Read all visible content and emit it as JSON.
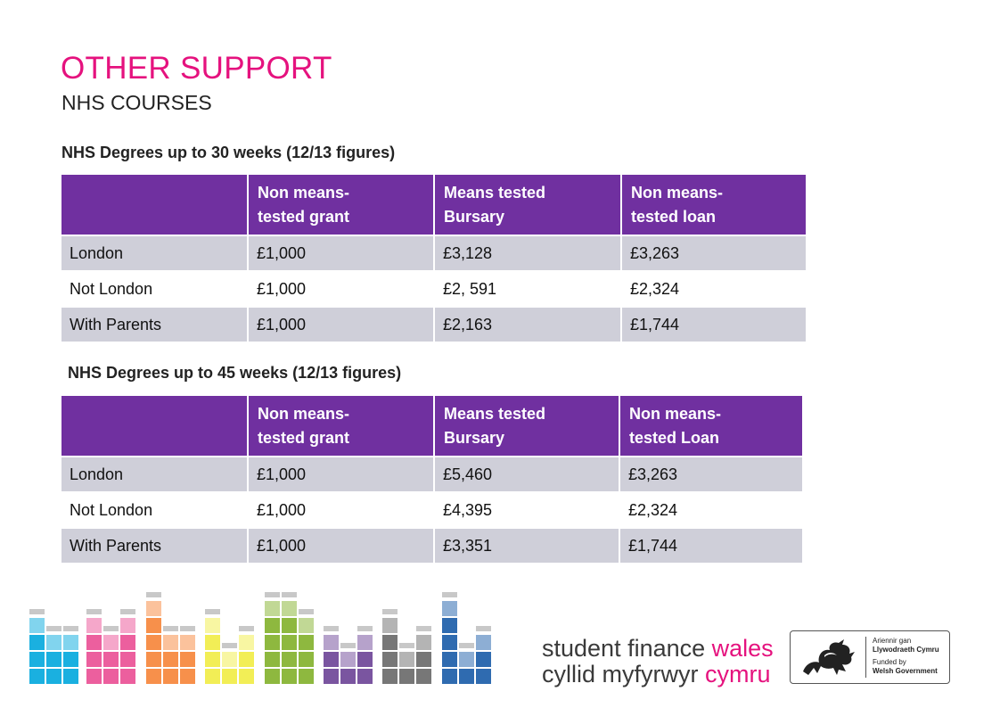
{
  "header": {
    "title": "OTHER SUPPORT",
    "subtitle": "NHS COURSES"
  },
  "section1": {
    "heading": "NHS Degrees up to 30 weeks (12/13 figures)",
    "columns": [
      "",
      "Non means-tested grant",
      "Means tested Bursary",
      "Non means-tested loan"
    ],
    "rows": [
      [
        "London",
        "£1,000",
        "£3,128",
        "£3,263"
      ],
      [
        "Not London",
        "£1,000",
        "£2, 591",
        "£2,324"
      ],
      [
        "With Parents",
        "£1,000",
        "£2,163",
        "£1,744"
      ]
    ]
  },
  "section2": {
    "heading": "NHS Degrees up to 45 weeks (12/13 figures)",
    "columns": [
      "",
      "Non means-tested grant",
      "Means tested Bursary",
      "Non means-tested Loan"
    ],
    "rows": [
      [
        "London",
        "£1,000",
        "£5,460",
        "£3,263"
      ],
      [
        "Not London",
        "£1,000",
        "£4,395",
        "£2,324"
      ],
      [
        "With Parents",
        "£1,000",
        "£3,351",
        "£1,744"
      ]
    ]
  },
  "footer": {
    "brand_line1_part1": "student finance ",
    "brand_line1_part2": "wales",
    "brand_line2_part1": "cyllid myfyrwyr ",
    "brand_line2_part2": "cymru",
    "gov_line1": "Ariennir gan",
    "gov_line2": "Llywodraeth Cymru",
    "gov_line3": "Funded by",
    "gov_line4": "Welsh Government",
    "gov_emblem_icon": "welsh-dragon-icon",
    "logo_colors": [
      "#1ab0e0",
      "#ec5f9e",
      "#f7904b",
      "#f2ee56",
      "#8eb83f",
      "#7a55a0",
      "#777777",
      "#2f6bb0"
    ],
    "accent_color": "#e5127e",
    "header_color": "#7030a0"
  }
}
